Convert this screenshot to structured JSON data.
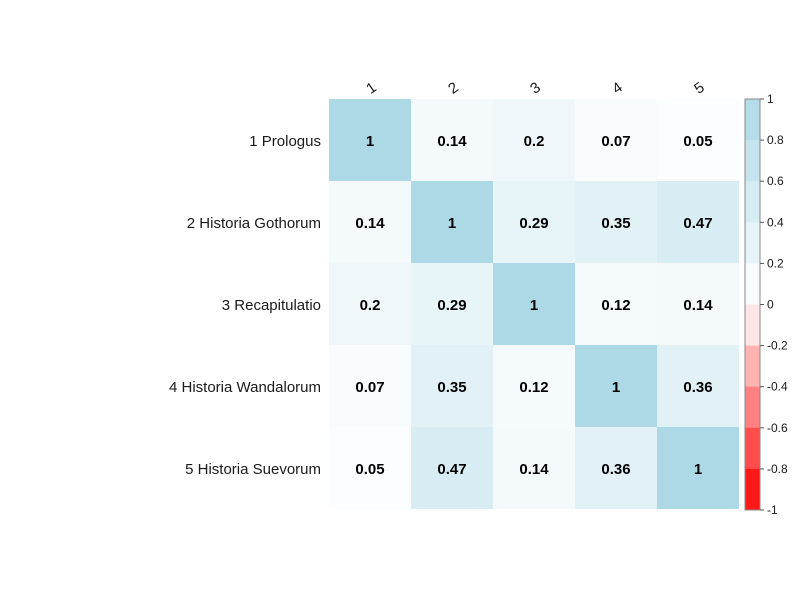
{
  "chart_data": {
    "type": "heatmap",
    "title": "",
    "rows": [
      "1 Prologus",
      "2 Historia Gothorum",
      "3 Recapitulatio",
      "4 Historia Wandalorum",
      "5 Historia Suevorum"
    ],
    "columns": [
      "1",
      "2",
      "3",
      "4",
      "5"
    ],
    "values": [
      [
        1,
        0.14,
        0.2,
        0.07,
        0.05
      ],
      [
        0.14,
        1,
        0.29,
        0.35,
        0.47
      ],
      [
        0.2,
        0.29,
        1,
        0.12,
        0.14
      ],
      [
        0.07,
        0.35,
        0.12,
        1,
        0.36
      ],
      [
        0.05,
        0.47,
        0.14,
        0.36,
        1
      ]
    ],
    "value_labels": [
      [
        "1",
        "0.14",
        "0.2",
        "0.07",
        "0.05"
      ],
      [
        "0.14",
        "1",
        "0.29",
        "0.35",
        "0.47"
      ],
      [
        "0.2",
        "0.29",
        "1",
        "0.12",
        "0.14"
      ],
      [
        "0.07",
        "0.35",
        "0.12",
        "1",
        "0.36"
      ],
      [
        "0.05",
        "0.47",
        "0.14",
        "0.36",
        "1"
      ]
    ],
    "color_scale": {
      "range": [
        -1,
        1
      ],
      "step": 0.2,
      "negative_end_color": "#FF0000",
      "zero_color": "#FFFFFF",
      "positive_end_color": "#ADD8E6"
    },
    "legend": {
      "position": "right",
      "ticks": [
        "1",
        "0.8",
        "0.6",
        "0.4",
        "0.2",
        "0",
        "-0.2",
        "-0.4",
        "-0.6",
        "-0.8",
        "-1"
      ]
    },
    "grid": false
  }
}
